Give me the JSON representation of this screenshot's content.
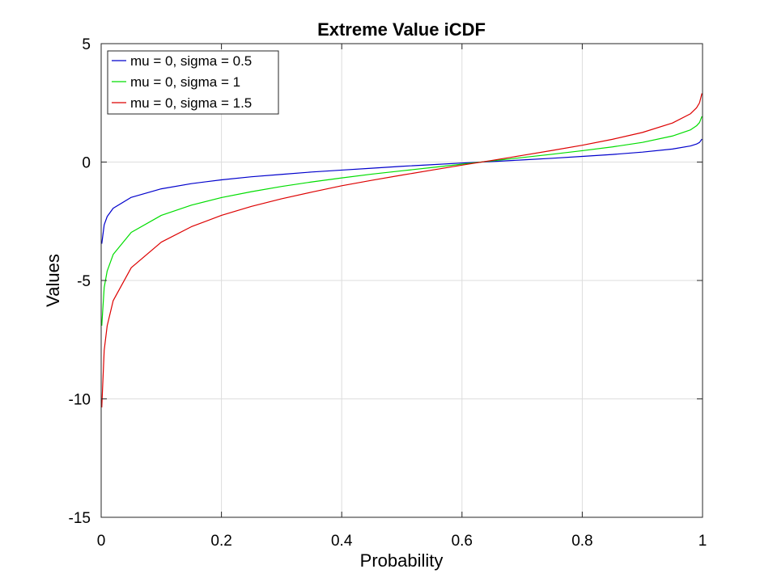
{
  "chart_data": {
    "type": "line",
    "title": "Extreme Value iCDF",
    "xlabel": "Probability",
    "ylabel": "Values",
    "xlim": [
      0,
      1
    ],
    "ylim": [
      -15,
      5
    ],
    "xticks": [
      0,
      0.2,
      0.4,
      0.6,
      0.8,
      1
    ],
    "xtick_labels": [
      "0",
      "0.2",
      "0.4",
      "0.6",
      "0.8",
      "1"
    ],
    "yticks": [
      -15,
      -10,
      -5,
      0,
      5
    ],
    "ytick_labels": [
      "-15",
      "-10",
      "-5",
      "0",
      "5"
    ],
    "grid": true,
    "legend_position": "top-left",
    "x": [
      0.001,
      0.005,
      0.01,
      0.02,
      0.05,
      0.1,
      0.15,
      0.2,
      0.25,
      0.3,
      0.35,
      0.4,
      0.45,
      0.5,
      0.55,
      0.6,
      0.65,
      0.7,
      0.75,
      0.8,
      0.85,
      0.9,
      0.95,
      0.98,
      0.99,
      0.995,
      0.999
    ],
    "series": [
      {
        "name": "mu = 0, sigma = 0.5",
        "color": "#0000cc",
        "values": [
          -3.45,
          -2.65,
          -2.3,
          -1.95,
          -1.49,
          -1.13,
          -0.91,
          -0.75,
          -0.62,
          -0.52,
          -0.42,
          -0.34,
          -0.26,
          -0.18,
          -0.11,
          -0.04,
          0.02,
          0.09,
          0.16,
          0.24,
          0.32,
          0.42,
          0.55,
          0.68,
          0.76,
          0.83,
          0.97
        ]
      },
      {
        "name": "mu = 0, sigma = 1",
        "color": "#00dd00",
        "values": [
          -6.91,
          -5.3,
          -4.6,
          -3.9,
          -2.97,
          -2.25,
          -1.82,
          -1.5,
          -1.25,
          -1.03,
          -0.84,
          -0.67,
          -0.51,
          -0.37,
          -0.23,
          -0.09,
          0.05,
          0.19,
          0.33,
          0.48,
          0.64,
          0.83,
          1.1,
          1.36,
          1.53,
          1.67,
          1.93
        ]
      },
      {
        "name": "mu = 0, sigma = 1.5",
        "color": "#dd0000",
        "values": [
          -10.36,
          -7.95,
          -6.91,
          -5.85,
          -4.46,
          -3.38,
          -2.73,
          -2.25,
          -1.87,
          -1.55,
          -1.27,
          -1.0,
          -0.77,
          -0.55,
          -0.34,
          -0.13,
          0.07,
          0.28,
          0.49,
          0.71,
          0.96,
          1.25,
          1.65,
          2.04,
          2.29,
          2.5,
          2.9
        ]
      }
    ]
  }
}
